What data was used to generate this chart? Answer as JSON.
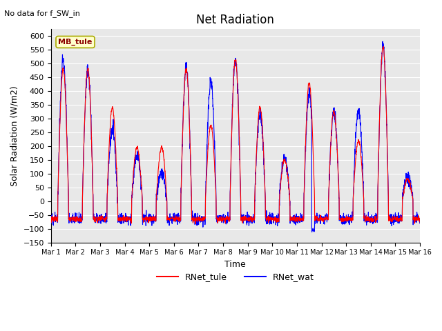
{
  "title": "Net Radiation",
  "subtitle": "No data for f_SW_in",
  "ylabel": "Solar Radiation (W/m2)",
  "xlabel": "Time",
  "ylim": [
    -150,
    625
  ],
  "yticks": [
    -150,
    -100,
    -50,
    0,
    50,
    100,
    150,
    200,
    250,
    300,
    350,
    400,
    450,
    500,
    550,
    600
  ],
  "legend_labels": [
    "RNet_tule",
    "RNet_wat"
  ],
  "annotation_box": "MB_tule",
  "annotation_box_facecolor": "#ffffcc",
  "annotation_box_edgecolor": "#aaaa00",
  "plot_background": "#e8e8e8",
  "n_days": 15,
  "points_per_day": 144,
  "tule_peaks": [
    480,
    480,
    340,
    195,
    195,
    480,
    275,
    515,
    340,
    150,
    430,
    325,
    220,
    560,
    80
  ],
  "wat_peaks": [
    515,
    475,
    255,
    170,
    105,
    485,
    435,
    515,
    320,
    155,
    390,
    325,
    330,
    560,
    90
  ],
  "night_base": -65,
  "noise_scale_tule": 4,
  "noise_scale_wat": 12
}
